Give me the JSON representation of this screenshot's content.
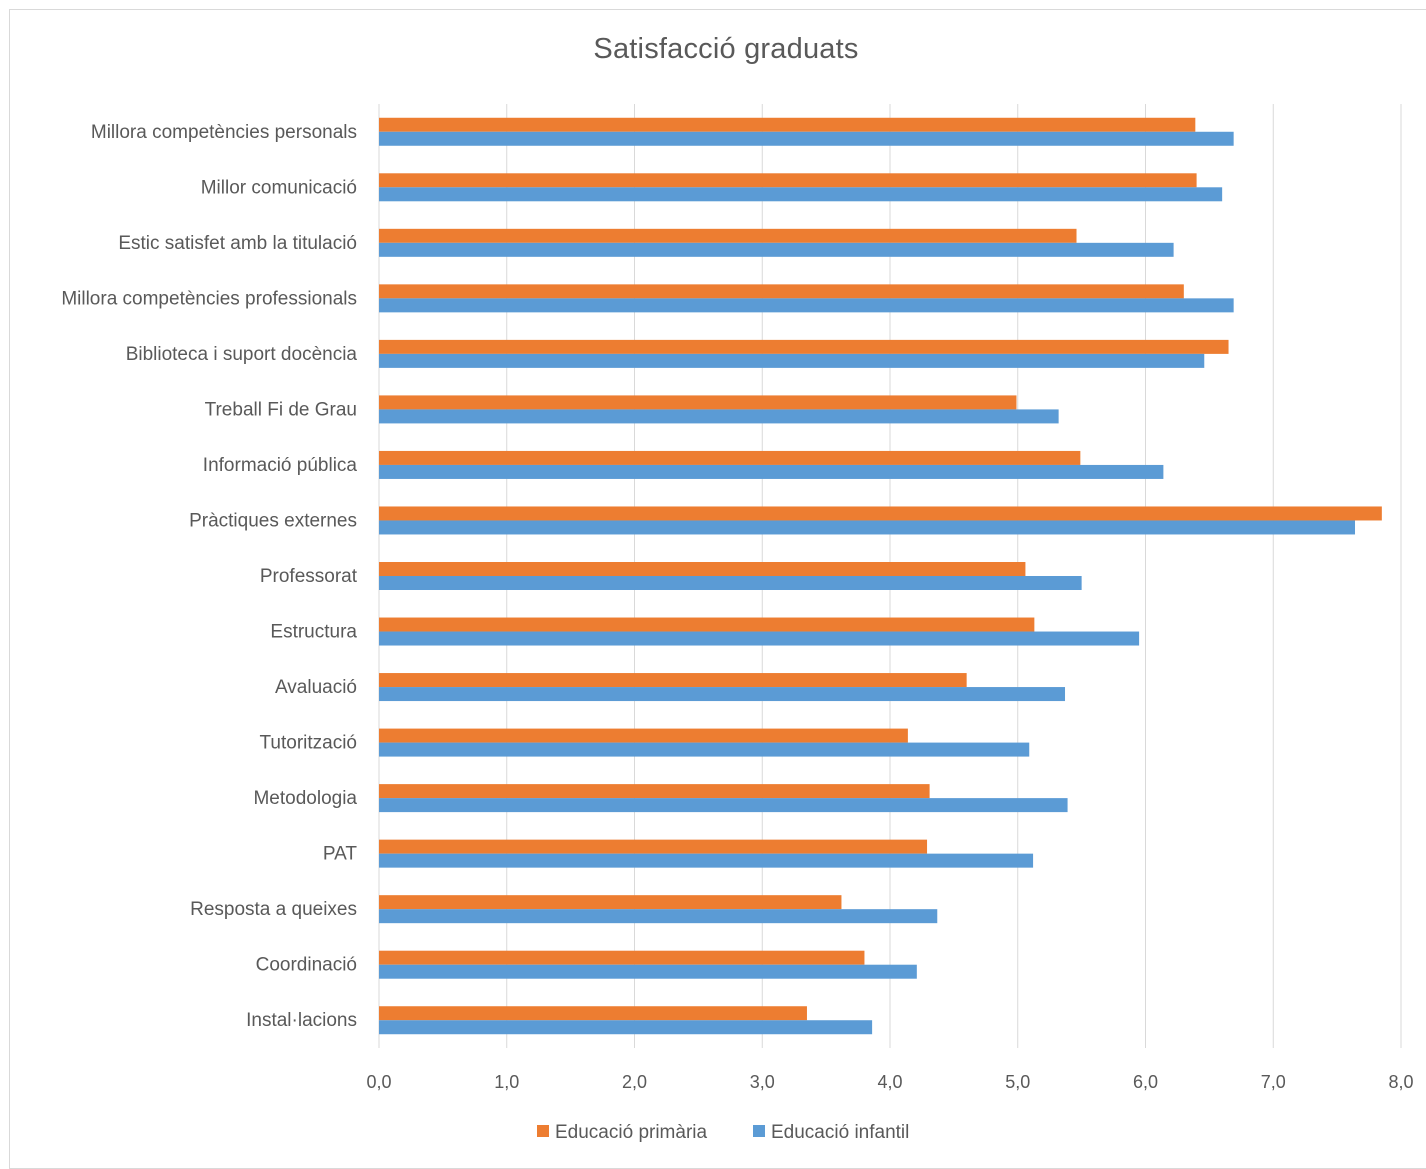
{
  "chart_data": {
    "type": "bar",
    "orientation": "horizontal",
    "title": "Satisfacció graduats",
    "xlabel": "",
    "ylabel": "",
    "xlim": [
      0,
      8
    ],
    "x_ticks": [
      "0,0",
      "1,0",
      "2,0",
      "3,0",
      "4,0",
      "5,0",
      "6,0",
      "7,0",
      "8,0"
    ],
    "grid": "vertical",
    "legend_position": "bottom",
    "categories": [
      "Millora competències personals",
      "Millor comunicació",
      "Estic satisfet amb la titulació",
      "Millora competències professionals",
      "Biblioteca i suport docència",
      "Treball Fi de Grau",
      "Informació pública",
      "Pràctiques externes",
      "Professorat",
      "Estructura",
      "Avaluació",
      "Tutorització",
      "Metodologia",
      "PAT",
      "Resposta a queixes",
      "Coordinació",
      "Instal·lacions"
    ],
    "series": [
      {
        "name": "Educació primària",
        "color": "#ED7D31",
        "values": [
          6.39,
          6.4,
          5.46,
          6.3,
          6.65,
          4.99,
          5.49,
          7.85,
          5.06,
          5.13,
          4.6,
          4.14,
          4.31,
          4.29,
          3.62,
          3.8,
          3.35
        ]
      },
      {
        "name": "Educació infantil",
        "color": "#5B9BD5",
        "values": [
          6.69,
          6.6,
          6.22,
          6.69,
          6.46,
          5.32,
          6.14,
          7.64,
          5.5,
          5.95,
          5.37,
          5.09,
          5.39,
          5.12,
          4.37,
          4.21,
          3.86
        ]
      }
    ]
  }
}
